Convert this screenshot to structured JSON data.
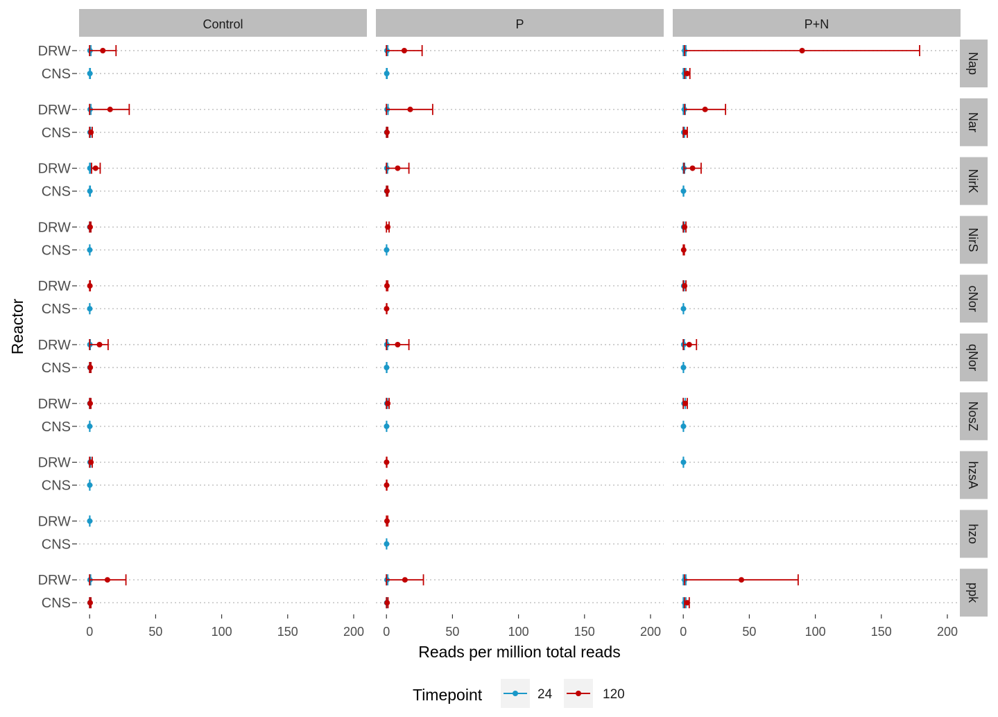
{
  "chart_data": {
    "type": "scatter",
    "subtype": "dot-plot with horizontal error bars, faceted grid",
    "xlabel": "Reads per million total reads",
    "ylabel": "Reactor",
    "xlim": [
      -8,
      210
    ],
    "xticks": [
      0,
      50,
      100,
      150,
      200
    ],
    "x_tick_labels": [
      "0",
      "50",
      "100",
      "150",
      "200"
    ],
    "y_categories": [
      "DRW",
      "CNS"
    ],
    "col_facets": [
      "Control",
      "P",
      "P+N"
    ],
    "row_facets": [
      "Nap",
      "Nar",
      "NirK",
      "NirS",
      "cNor",
      "qNor",
      "NosZ",
      "hzsA",
      "hzo",
      "ppk"
    ],
    "grid": "dotted horizontal gridlines at each category",
    "legend": {
      "title": "Timepoint",
      "position": "bottom",
      "entries": [
        {
          "label": "24",
          "color": "#1A98C8"
        },
        {
          "label": "120",
          "color": "#C00000"
        }
      ]
    },
    "series": [
      {
        "name": "24",
        "color": "#1A98C8",
        "points": [
          {
            "col": "Control",
            "row": "Nap",
            "reactor": "DRW",
            "x": 0.3,
            "lo": 0,
            "hi": 1
          },
          {
            "col": "Control",
            "row": "Nap",
            "reactor": "CNS",
            "x": 0.2,
            "lo": 0,
            "hi": 0.5
          },
          {
            "col": "Control",
            "row": "Nar",
            "reactor": "DRW",
            "x": 0.4,
            "lo": 0,
            "hi": 1
          },
          {
            "col": "Control",
            "row": "Nar",
            "reactor": "CNS",
            "x": 0.3,
            "lo": 0,
            "hi": 0.7
          },
          {
            "col": "Control",
            "row": "NirK",
            "reactor": "DRW",
            "x": 0.2,
            "lo": 0,
            "hi": 0.5
          },
          {
            "col": "Control",
            "row": "NirK",
            "reactor": "CNS",
            "x": 0.2,
            "lo": 0,
            "hi": 0.5
          },
          {
            "col": "Control",
            "row": "NirS",
            "reactor": "DRW",
            "x": 0.1,
            "lo": 0,
            "hi": 0.3
          },
          {
            "col": "Control",
            "row": "NirS",
            "reactor": "CNS",
            "x": 0.1,
            "lo": 0,
            "hi": 0.2
          },
          {
            "col": "Control",
            "row": "cNor",
            "reactor": "CNS",
            "x": 0.1,
            "lo": 0,
            "hi": 0.2
          },
          {
            "col": "Control",
            "row": "qNor",
            "reactor": "DRW",
            "x": 0.2,
            "lo": 0,
            "hi": 0.5
          },
          {
            "col": "Control",
            "row": "qNor",
            "reactor": "CNS",
            "x": 0.2,
            "lo": 0,
            "hi": 0.5
          },
          {
            "col": "Control",
            "row": "NosZ",
            "reactor": "DRW",
            "x": 0.2,
            "lo": 0,
            "hi": 0.5
          },
          {
            "col": "Control",
            "row": "NosZ",
            "reactor": "CNS",
            "x": 0.1,
            "lo": 0,
            "hi": 0.2
          },
          {
            "col": "Control",
            "row": "hzsA",
            "reactor": "DRW",
            "x": 0.3,
            "lo": 0,
            "hi": 0.7
          },
          {
            "col": "Control",
            "row": "hzsA",
            "reactor": "CNS",
            "x": 0.1,
            "lo": 0,
            "hi": 0.2
          },
          {
            "col": "Control",
            "row": "hzo",
            "reactor": "DRW",
            "x": 0.1,
            "lo": 0,
            "hi": 0.2
          },
          {
            "col": "Control",
            "row": "ppk",
            "reactor": "DRW",
            "x": 0.3,
            "lo": 0,
            "hi": 0.8
          },
          {
            "col": "Control",
            "row": "ppk",
            "reactor": "CNS",
            "x": 0.3,
            "lo": 0,
            "hi": 0.7
          },
          {
            "col": "P",
            "row": "Nap",
            "reactor": "DRW",
            "x": 0.4,
            "lo": 0,
            "hi": 1
          },
          {
            "col": "P",
            "row": "Nap",
            "reactor": "CNS",
            "x": 0.2,
            "lo": 0,
            "hi": 0.5
          },
          {
            "col": "P",
            "row": "Nar",
            "reactor": "DRW",
            "x": 0.5,
            "lo": 0,
            "hi": 1.2
          },
          {
            "col": "P",
            "row": "Nar",
            "reactor": "CNS",
            "x": 0.2,
            "lo": 0,
            "hi": 0.5
          },
          {
            "col": "P",
            "row": "NirK",
            "reactor": "DRW",
            "x": 0.3,
            "lo": 0,
            "hi": 0.8
          },
          {
            "col": "P",
            "row": "NirK",
            "reactor": "CNS",
            "x": 0.2,
            "lo": 0,
            "hi": 0.5
          },
          {
            "col": "P",
            "row": "NirS",
            "reactor": "CNS",
            "x": 0.1,
            "lo": 0,
            "hi": 0.2
          },
          {
            "col": "P",
            "row": "qNor",
            "reactor": "DRW",
            "x": 0.3,
            "lo": 0,
            "hi": 0.8
          },
          {
            "col": "P",
            "row": "qNor",
            "reactor": "CNS",
            "x": 0.1,
            "lo": 0,
            "hi": 0.3
          },
          {
            "col": "P",
            "row": "NosZ",
            "reactor": "DRW",
            "x": 0.3,
            "lo": 0,
            "hi": 0.7
          },
          {
            "col": "P",
            "row": "NosZ",
            "reactor": "CNS",
            "x": 0.1,
            "lo": 0,
            "hi": 0.2
          },
          {
            "col": "P",
            "row": "hzo",
            "reactor": "CNS",
            "x": 0.1,
            "lo": 0,
            "hi": 0.2
          },
          {
            "col": "P",
            "row": "ppk",
            "reactor": "DRW",
            "x": 0.4,
            "lo": 0,
            "hi": 1
          },
          {
            "col": "P",
            "row": "ppk",
            "reactor": "CNS",
            "x": 0.2,
            "lo": 0,
            "hi": 0.5
          },
          {
            "col": "P+N",
            "row": "Nap",
            "reactor": "DRW",
            "x": 1.0,
            "lo": 0,
            "hi": 2
          },
          {
            "col": "P+N",
            "row": "Nap",
            "reactor": "CNS",
            "x": 1.0,
            "lo": 0,
            "hi": 2
          },
          {
            "col": "P+N",
            "row": "Nar",
            "reactor": "DRW",
            "x": 0.8,
            "lo": 0,
            "hi": 1.5
          },
          {
            "col": "P+N",
            "row": "Nar",
            "reactor": "CNS",
            "x": 0.4,
            "lo": 0,
            "hi": 1
          },
          {
            "col": "P+N",
            "row": "NirK",
            "reactor": "DRW",
            "x": 0.5,
            "lo": 0,
            "hi": 1
          },
          {
            "col": "P+N",
            "row": "NirK",
            "reactor": "CNS",
            "x": 0.1,
            "lo": 0,
            "hi": 0.3
          },
          {
            "col": "P+N",
            "row": "NirS",
            "reactor": "DRW",
            "x": 0.3,
            "lo": 0,
            "hi": 0.7
          },
          {
            "col": "P+N",
            "row": "cNor",
            "reactor": "DRW",
            "x": 0.3,
            "lo": 0,
            "hi": 0.7
          },
          {
            "col": "P+N",
            "row": "cNor",
            "reactor": "CNS",
            "x": 0.1,
            "lo": 0,
            "hi": 0.2
          },
          {
            "col": "P+N",
            "row": "qNor",
            "reactor": "DRW",
            "x": 0.3,
            "lo": 0,
            "hi": 0.8
          },
          {
            "col": "P+N",
            "row": "qNor",
            "reactor": "CNS",
            "x": 0.1,
            "lo": 0,
            "hi": 0.2
          },
          {
            "col": "P+N",
            "row": "NosZ",
            "reactor": "DRW",
            "x": 0.6,
            "lo": 0,
            "hi": 1.5
          },
          {
            "col": "P+N",
            "row": "NosZ",
            "reactor": "CNS",
            "x": 0.1,
            "lo": 0,
            "hi": 0.2
          },
          {
            "col": "P+N",
            "row": "hzsA",
            "reactor": "DRW",
            "x": 0.1,
            "lo": 0,
            "hi": 0.2
          },
          {
            "col": "P+N",
            "row": "ppk",
            "reactor": "DRW",
            "x": 1.0,
            "lo": 0,
            "hi": 2
          },
          {
            "col": "P+N",
            "row": "ppk",
            "reactor": "CNS",
            "x": 1.0,
            "lo": 0,
            "hi": 2
          }
        ]
      },
      {
        "name": "120",
        "color": "#C00000",
        "points": [
          {
            "col": "Control",
            "row": "Nap",
            "reactor": "DRW",
            "x": 10,
            "lo": 0,
            "hi": 20
          },
          {
            "col": "Control",
            "row": "Nar",
            "reactor": "DRW",
            "x": 15.5,
            "lo": 0,
            "hi": 30
          },
          {
            "col": "Control",
            "row": "Nar",
            "reactor": "CNS",
            "x": 1,
            "lo": 0,
            "hi": 2
          },
          {
            "col": "Control",
            "row": "NirK",
            "reactor": "DRW",
            "x": 4.5,
            "lo": 1.5,
            "hi": 8
          },
          {
            "col": "Control",
            "row": "NirS",
            "reactor": "DRW",
            "x": 0.4,
            "lo": 0,
            "hi": 1
          },
          {
            "col": "Control",
            "row": "cNor",
            "reactor": "DRW",
            "x": 0.2,
            "lo": 0,
            "hi": 0.5
          },
          {
            "col": "Control",
            "row": "qNor",
            "reactor": "DRW",
            "x": 7.5,
            "lo": 0,
            "hi": 14
          },
          {
            "col": "Control",
            "row": "qNor",
            "reactor": "CNS",
            "x": 0.5,
            "lo": 0,
            "hi": 1
          },
          {
            "col": "Control",
            "row": "NosZ",
            "reactor": "DRW",
            "x": 0.4,
            "lo": 0,
            "hi": 1
          },
          {
            "col": "Control",
            "row": "hzsA",
            "reactor": "DRW",
            "x": 1,
            "lo": 0,
            "hi": 2
          },
          {
            "col": "Control",
            "row": "ppk",
            "reactor": "DRW",
            "x": 13.5,
            "lo": 0,
            "hi": 27.5
          },
          {
            "col": "Control",
            "row": "ppk",
            "reactor": "CNS",
            "x": 0.4,
            "lo": 0,
            "hi": 1
          },
          {
            "col": "P",
            "row": "Nap",
            "reactor": "DRW",
            "x": 13.5,
            "lo": 0,
            "hi": 27
          },
          {
            "col": "P",
            "row": "Nar",
            "reactor": "DRW",
            "x": 18,
            "lo": 0,
            "hi": 35
          },
          {
            "col": "P",
            "row": "Nar",
            "reactor": "CNS",
            "x": 0.4,
            "lo": 0,
            "hi": 1
          },
          {
            "col": "P",
            "row": "NirK",
            "reactor": "DRW",
            "x": 8.5,
            "lo": 0,
            "hi": 17
          },
          {
            "col": "P",
            "row": "NirK",
            "reactor": "CNS",
            "x": 0.4,
            "lo": 0,
            "hi": 1
          },
          {
            "col": "P",
            "row": "NirS",
            "reactor": "DRW",
            "x": 1,
            "lo": 0,
            "hi": 2
          },
          {
            "col": "P",
            "row": "cNor",
            "reactor": "DRW",
            "x": 0.4,
            "lo": 0,
            "hi": 1
          },
          {
            "col": "P",
            "row": "cNor",
            "reactor": "CNS",
            "x": 0.1,
            "lo": 0,
            "hi": 0.3
          },
          {
            "col": "P",
            "row": "qNor",
            "reactor": "DRW",
            "x": 8.5,
            "lo": 0,
            "hi": 17
          },
          {
            "col": "P",
            "row": "NosZ",
            "reactor": "DRW",
            "x": 1,
            "lo": 0,
            "hi": 2
          },
          {
            "col": "P",
            "row": "hzsA",
            "reactor": "DRW",
            "x": 0.1,
            "lo": 0,
            "hi": 0.3
          },
          {
            "col": "P",
            "row": "hzsA",
            "reactor": "CNS",
            "x": 0.1,
            "lo": 0,
            "hi": 0.3
          },
          {
            "col": "P",
            "row": "hzo",
            "reactor": "DRW",
            "x": 0.4,
            "lo": 0,
            "hi": 1
          },
          {
            "col": "P",
            "row": "ppk",
            "reactor": "DRW",
            "x": 14,
            "lo": 0,
            "hi": 28
          },
          {
            "col": "P",
            "row": "ppk",
            "reactor": "CNS",
            "x": 0.5,
            "lo": 0,
            "hi": 1.2
          },
          {
            "col": "P+N",
            "row": "Nap",
            "reactor": "DRW",
            "x": 90,
            "lo": 1,
            "hi": 179
          },
          {
            "col": "P+N",
            "row": "Nap",
            "reactor": "CNS",
            "x": 3,
            "lo": 1,
            "hi": 5
          },
          {
            "col": "P+N",
            "row": "Nar",
            "reactor": "DRW",
            "x": 16.5,
            "lo": 1,
            "hi": 32
          },
          {
            "col": "P+N",
            "row": "Nar",
            "reactor": "CNS",
            "x": 1.5,
            "lo": 0,
            "hi": 3
          },
          {
            "col": "P+N",
            "row": "NirK",
            "reactor": "DRW",
            "x": 7,
            "lo": 0.5,
            "hi": 13.5
          },
          {
            "col": "P+N",
            "row": "NirS",
            "reactor": "DRW",
            "x": 1,
            "lo": 0,
            "hi": 2
          },
          {
            "col": "P+N",
            "row": "NirS",
            "reactor": "CNS",
            "x": 0.3,
            "lo": 0,
            "hi": 0.8
          },
          {
            "col": "P+N",
            "row": "cNor",
            "reactor": "DRW",
            "x": 1,
            "lo": 0,
            "hi": 2
          },
          {
            "col": "P+N",
            "row": "qNor",
            "reactor": "DRW",
            "x": 4.5,
            "lo": 0,
            "hi": 10
          },
          {
            "col": "P+N",
            "row": "NosZ",
            "reactor": "DRW",
            "x": 1.5,
            "lo": 0,
            "hi": 3
          },
          {
            "col": "P+N",
            "row": "ppk",
            "reactor": "DRW",
            "x": 44,
            "lo": 1,
            "hi": 87
          },
          {
            "col": "P+N",
            "row": "ppk",
            "reactor": "CNS",
            "x": 3,
            "lo": 1,
            "hi": 4.5
          }
        ]
      }
    ]
  }
}
